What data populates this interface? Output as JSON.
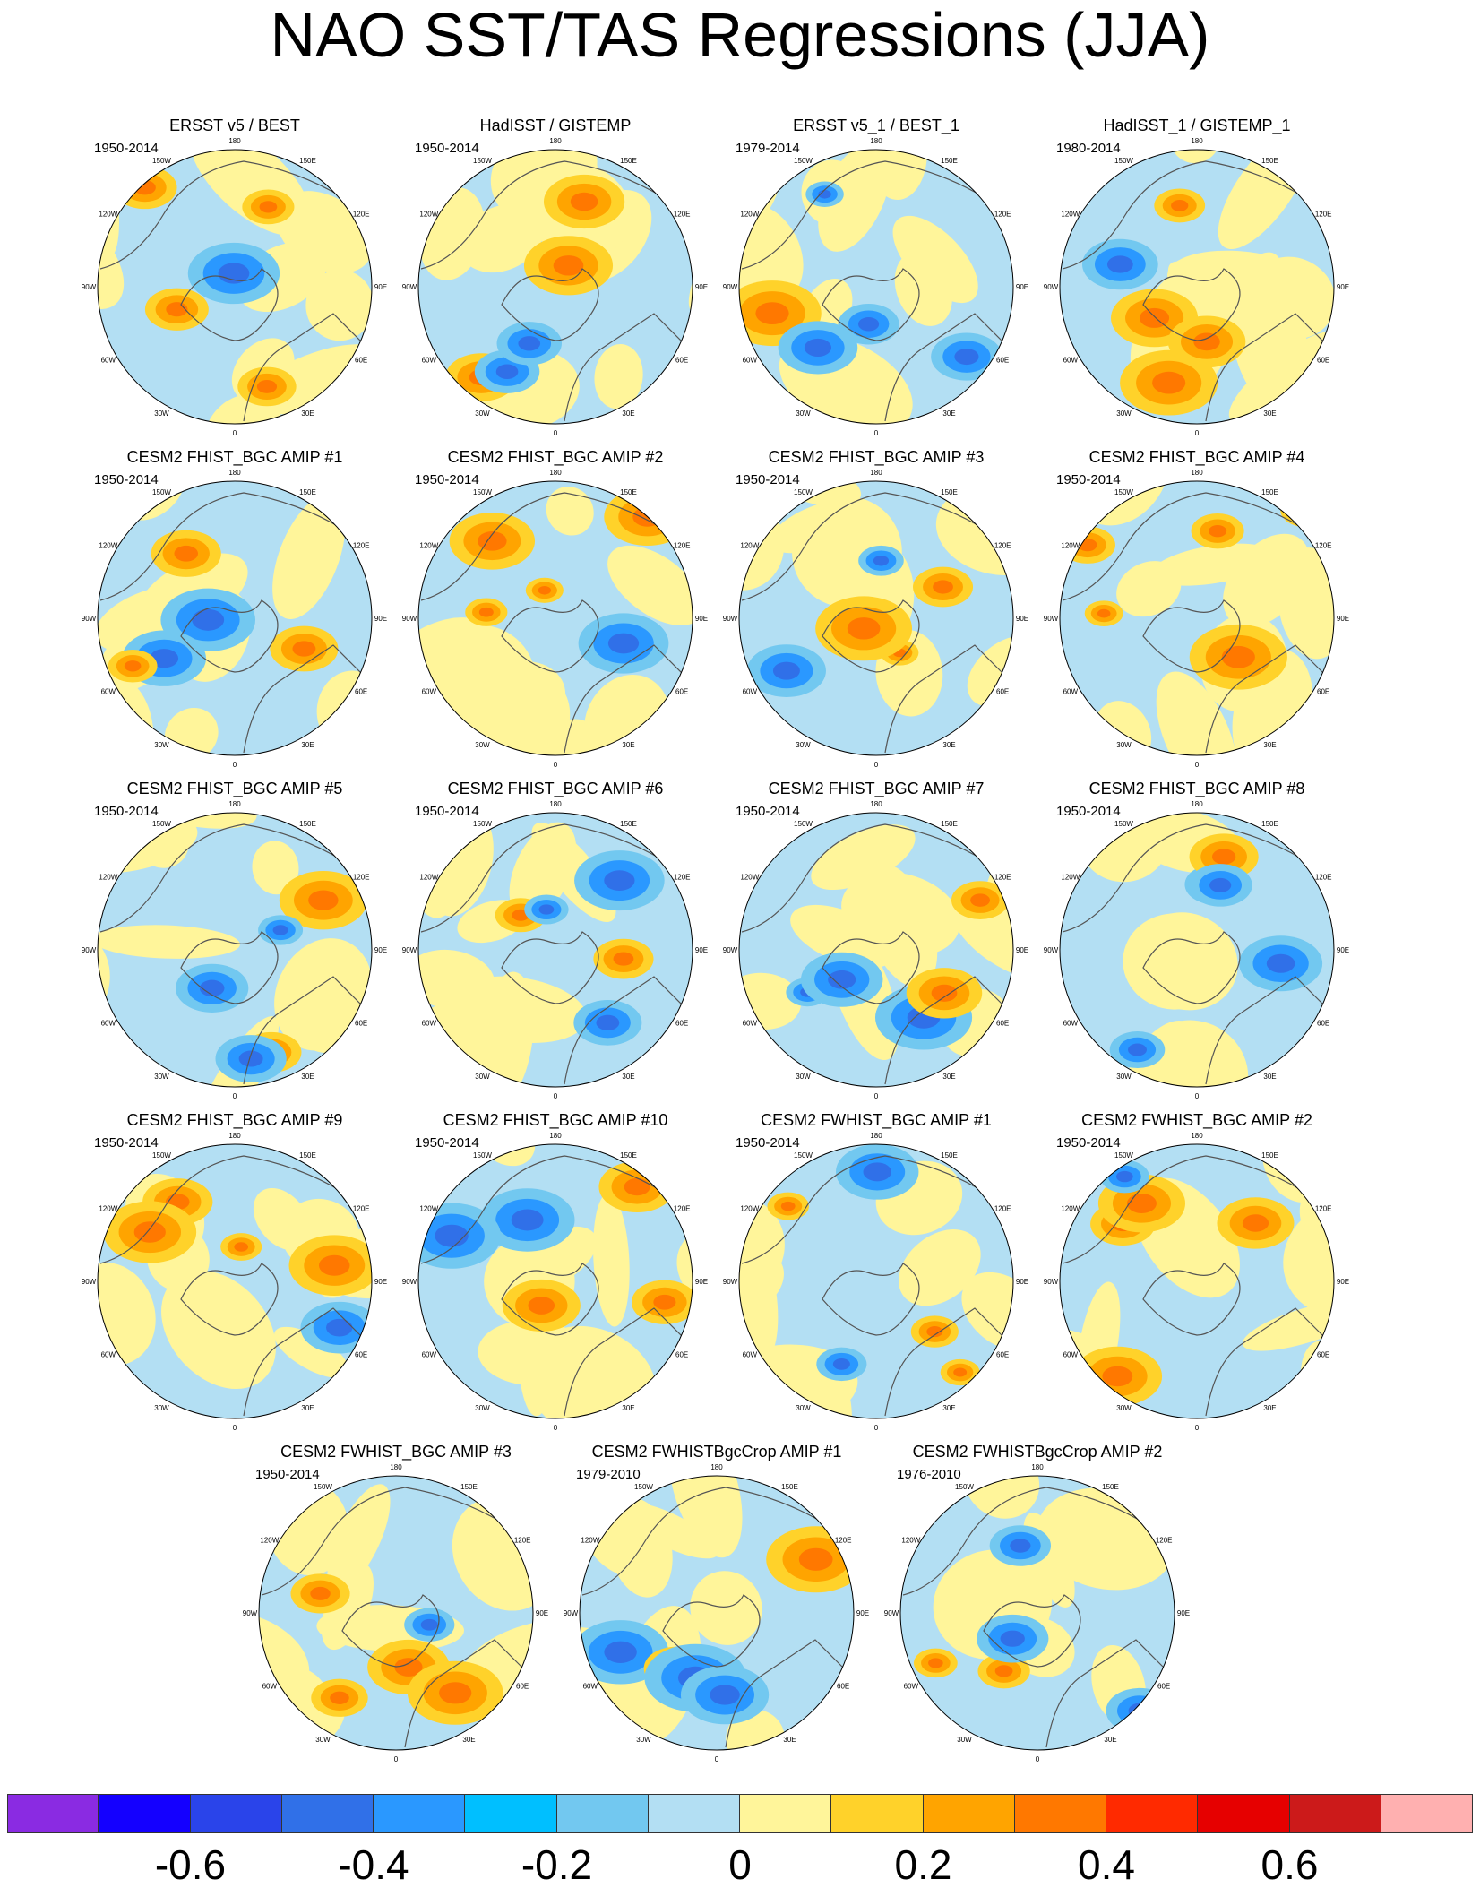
{
  "title": "NAO SST/TAS Regressions (JJA)",
  "longitude_labels": [
    "180",
    "150E",
    "120E",
    "90E",
    "60E",
    "30E",
    "0",
    "30W",
    "60W",
    "90W",
    "120W",
    "150W"
  ],
  "panels": [
    {
      "title": "ERSST v5 / BEST",
      "period": "1950-2014"
    },
    {
      "title": "HadISST / GISTEMP",
      "period": "1950-2014"
    },
    {
      "title": "ERSST v5_1 / BEST_1",
      "period": "1979-2014"
    },
    {
      "title": "HadISST_1 / GISTEMP_1",
      "period": "1980-2014"
    },
    {
      "title": "CESM2 FHIST_BGC AMIP #1",
      "period": "1950-2014"
    },
    {
      "title": "CESM2 FHIST_BGC AMIP #2",
      "period": "1950-2014"
    },
    {
      "title": "CESM2 FHIST_BGC AMIP #3",
      "period": "1950-2014"
    },
    {
      "title": "CESM2 FHIST_BGC AMIP #4",
      "period": "1950-2014"
    },
    {
      "title": "CESM2 FHIST_BGC AMIP #5",
      "period": "1950-2014"
    },
    {
      "title": "CESM2 FHIST_BGC AMIP #6",
      "period": "1950-2014"
    },
    {
      "title": "CESM2 FHIST_BGC AMIP #7",
      "period": "1950-2014"
    },
    {
      "title": "CESM2 FHIST_BGC AMIP #8",
      "period": "1950-2014"
    },
    {
      "title": "CESM2 FHIST_BGC AMIP #9",
      "period": "1950-2014"
    },
    {
      "title": "CESM2 FHIST_BGC AMIP #10",
      "period": "1950-2014"
    },
    {
      "title": "CESM2 FWHIST_BGC AMIP #1",
      "period": "1950-2014"
    },
    {
      "title": "CESM2 FWHIST_BGC AMIP #2",
      "period": "1950-2014"
    },
    {
      "title": "CESM2 FWHIST_BGC AMIP #3",
      "period": "1950-2014"
    },
    {
      "title": "CESM2 FWHISTBgcCrop AMIP #1",
      "period": "1979-2010"
    },
    {
      "title": "CESM2 FWHISTBgcCrop AMIP #2",
      "period": "1976-2010"
    }
  ],
  "colorbar": {
    "colors": [
      "#8a2be2",
      "#1400ff",
      "#2a44ea",
      "#3070e8",
      "#2a98ff",
      "#00bfff",
      "#72c8f0",
      "#b3dff3",
      "#fff59a",
      "#ffd22a",
      "#ffa400",
      "#ff7800",
      "#ff2a00",
      "#e60000",
      "#cc1a1a",
      "#ffb0b0"
    ],
    "labels": [
      {
        "text": "-0.6",
        "boundary": 2
      },
      {
        "text": "-0.4",
        "boundary": 4
      },
      {
        "text": "-0.2",
        "boundary": 6
      },
      {
        "text": "0",
        "boundary": 8
      },
      {
        "text": "0.2",
        "boundary": 10
      },
      {
        "text": "0.4",
        "boundary": 12
      },
      {
        "text": "0.6",
        "boundary": 14
      }
    ]
  }
}
